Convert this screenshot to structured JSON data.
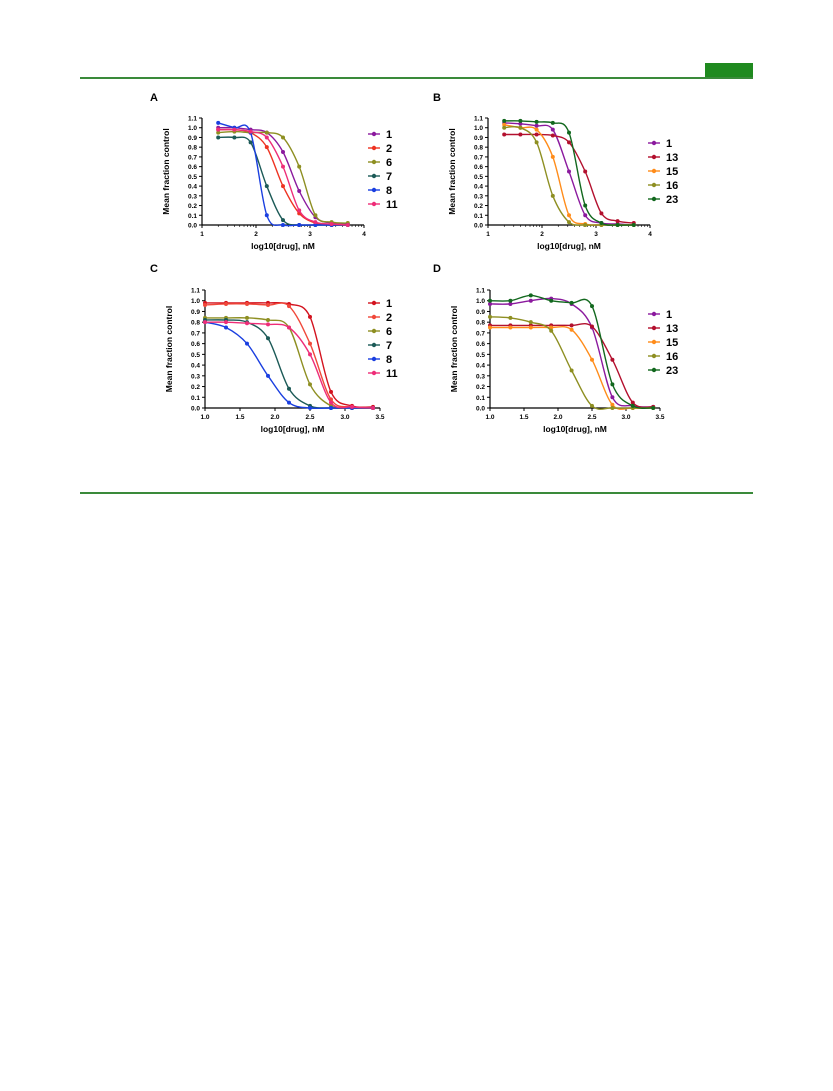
{
  "chart_data": [
    {
      "panel": "A",
      "type": "line",
      "xlabel": "log10[drug], nM",
      "ylabel": "Mean fraction control",
      "xlim": [
        1,
        4
      ],
      "ylim": [
        0,
        1.1
      ],
      "xticks": [
        "1",
        "2",
        "3",
        "4"
      ],
      "yticks": [
        "0.0",
        "0.1",
        "0.2",
        "0.3",
        "0.4",
        "0.5",
        "0.6",
        "0.7",
        "0.8",
        "0.9",
        "1.0",
        "1.1"
      ],
      "legend_position": "right",
      "series": [
        {
          "name": "1",
          "color": "#8b1a9e",
          "x": [
            1.3,
            1.6,
            1.9,
            2.2,
            2.5,
            2.8,
            3.1,
            3.4,
            3.7
          ],
          "y": [
            1.0,
            1.0,
            0.98,
            0.95,
            0.75,
            0.35,
            0.08,
            0.02,
            0.01
          ]
        },
        {
          "name": "2",
          "color": "#ee3322",
          "x": [
            1.3,
            1.6,
            1.9,
            2.2,
            2.5,
            2.8,
            3.1,
            3.4,
            3.7
          ],
          "y": [
            0.98,
            0.98,
            0.95,
            0.8,
            0.4,
            0.12,
            0.02,
            0.0,
            0.0
          ]
        },
        {
          "name": "6",
          "color": "#8e8f22",
          "x": [
            1.3,
            1.6,
            1.9,
            2.2,
            2.5,
            2.8,
            3.1,
            3.4,
            3.7
          ],
          "y": [
            0.95,
            0.96,
            0.95,
            0.95,
            0.9,
            0.6,
            0.1,
            0.03,
            0.02
          ]
        },
        {
          "name": "7",
          "color": "#1c5a57",
          "x": [
            1.3,
            1.6,
            1.9,
            2.2,
            2.5,
            2.8,
            3.1,
            3.4,
            3.7
          ],
          "y": [
            0.9,
            0.9,
            0.85,
            0.4,
            0.05,
            0.0,
            0.0,
            0.0,
            0.0
          ]
        },
        {
          "name": "8",
          "color": "#1a3fe0",
          "x": [
            1.3,
            1.6,
            1.9,
            2.2,
            2.5,
            2.8,
            3.1,
            3.4,
            3.7
          ],
          "y": [
            1.05,
            1.0,
            0.95,
            0.1,
            0.0,
            0.0,
            0.0,
            0.0,
            0.0
          ]
        },
        {
          "name": "11",
          "color": "#ee2d78",
          "x": [
            1.3,
            1.6,
            1.9,
            2.2,
            2.5,
            2.8,
            3.1,
            3.4,
            3.7
          ],
          "y": [
            0.98,
            0.98,
            0.96,
            0.9,
            0.6,
            0.15,
            0.03,
            0.01,
            0.0
          ]
        }
      ]
    },
    {
      "panel": "B",
      "type": "line",
      "xlabel": "log10[drug], nM",
      "ylabel": "Mean fraction control",
      "xlim": [
        1,
        4
      ],
      "ylim": [
        0,
        1.1
      ],
      "xticks": [
        "1",
        "2",
        "3",
        "4"
      ],
      "yticks": [
        "0.0",
        "0.1",
        "0.2",
        "0.3",
        "0.4",
        "0.5",
        "0.6",
        "0.7",
        "0.8",
        "0.9",
        "1.0",
        "1.1"
      ],
      "legend_position": "right",
      "series": [
        {
          "name": "1",
          "color": "#8b1a9e",
          "x": [
            1.3,
            1.6,
            1.9,
            2.2,
            2.5,
            2.8,
            3.1,
            3.4,
            3.7
          ],
          "y": [
            1.05,
            1.04,
            1.02,
            0.98,
            0.55,
            0.1,
            0.02,
            0.01,
            0.0
          ]
        },
        {
          "name": "13",
          "color": "#b3102e",
          "x": [
            1.3,
            1.6,
            1.9,
            2.2,
            2.5,
            2.8,
            3.1,
            3.4,
            3.7
          ],
          "y": [
            0.93,
            0.93,
            0.93,
            0.92,
            0.85,
            0.55,
            0.12,
            0.04,
            0.02
          ]
        },
        {
          "name": "15",
          "color": "#ff8c1a",
          "x": [
            1.3,
            1.6,
            1.9,
            2.2,
            2.5,
            2.8,
            3.1,
            3.4,
            3.7
          ],
          "y": [
            1.03,
            1.0,
            0.98,
            0.7,
            0.1,
            0.01,
            0.0,
            0.0,
            0.0
          ]
        },
        {
          "name": "16",
          "color": "#8e8f22",
          "x": [
            1.3,
            1.6,
            1.9,
            2.2,
            2.5,
            2.8,
            3.1,
            3.4,
            3.7
          ],
          "y": [
            1.0,
            1.0,
            0.85,
            0.3,
            0.03,
            0.0,
            0.0,
            0.0,
            0.0
          ]
        },
        {
          "name": "23",
          "color": "#12681e",
          "x": [
            1.3,
            1.6,
            1.9,
            2.2,
            2.5,
            2.8,
            3.1,
            3.4,
            3.7
          ],
          "y": [
            1.07,
            1.07,
            1.06,
            1.05,
            0.95,
            0.2,
            0.02,
            0.0,
            0.0
          ]
        }
      ]
    },
    {
      "panel": "C",
      "type": "line",
      "xlabel": "log10[drug], nM",
      "ylabel": "Mean fraction control",
      "xlim": [
        1.0,
        3.5
      ],
      "ylim": [
        0,
        1.1
      ],
      "xticks": [
        "1.0",
        "1.5",
        "2.0",
        "2.5",
        "3.0",
        "3.5"
      ],
      "yticks": [
        "0.0",
        "0.1",
        "0.2",
        "0.3",
        "0.4",
        "0.5",
        "0.6",
        "0.7",
        "0.8",
        "0.9",
        "1.0",
        "1.1"
      ],
      "legend_position": "right",
      "series": [
        {
          "name": "1",
          "color": "#d3131f",
          "x": [
            1.0,
            1.3,
            1.6,
            1.9,
            2.2,
            2.5,
            2.8,
            3.1,
            3.4
          ],
          "y": [
            0.98,
            0.98,
            0.98,
            0.98,
            0.97,
            0.85,
            0.15,
            0.02,
            0.01
          ]
        },
        {
          "name": "2",
          "color": "#f0483a",
          "x": [
            1.0,
            1.3,
            1.6,
            1.9,
            2.2,
            2.5,
            2.8,
            3.1,
            3.4
          ],
          "y": [
            0.96,
            0.97,
            0.97,
            0.96,
            0.95,
            0.6,
            0.08,
            0.01,
            0.0
          ]
        },
        {
          "name": "6",
          "color": "#8e8f22",
          "x": [
            1.0,
            1.3,
            1.6,
            1.9,
            2.2,
            2.5,
            2.8,
            3.1,
            3.4
          ],
          "y": [
            0.84,
            0.84,
            0.84,
            0.82,
            0.75,
            0.22,
            0.02,
            0.0,
            0.0
          ]
        },
        {
          "name": "7",
          "color": "#1c5a57",
          "x": [
            1.0,
            1.3,
            1.6,
            1.9,
            2.2,
            2.5,
            2.8,
            3.1,
            3.4
          ],
          "y": [
            0.82,
            0.82,
            0.8,
            0.65,
            0.18,
            0.02,
            0.0,
            0.0,
            0.0
          ]
        },
        {
          "name": "8",
          "color": "#1a3fe0",
          "x": [
            1.0,
            1.3,
            1.6,
            1.9,
            2.2,
            2.5,
            2.8,
            3.1,
            3.4
          ],
          "y": [
            0.8,
            0.75,
            0.6,
            0.3,
            0.05,
            0.0,
            0.0,
            0.0,
            0.0
          ]
        },
        {
          "name": "11",
          "color": "#ee2d78",
          "x": [
            1.0,
            1.3,
            1.6,
            1.9,
            2.2,
            2.5,
            2.8,
            3.1,
            3.4
          ],
          "y": [
            0.8,
            0.8,
            0.79,
            0.78,
            0.75,
            0.5,
            0.05,
            0.01,
            0.0
          ]
        }
      ]
    },
    {
      "panel": "D",
      "type": "line",
      "xlabel": "log10[drug], nM",
      "ylabel": "Mean fraction control",
      "xlim": [
        1.0,
        3.5
      ],
      "ylim": [
        0,
        1.1
      ],
      "xticks": [
        "1.0",
        "1.5",
        "2.0",
        "2.5",
        "3.0",
        "3.5"
      ],
      "yticks": [
        "0.0",
        "0.1",
        "0.2",
        "0.3",
        "0.4",
        "0.5",
        "0.6",
        "0.7",
        "0.8",
        "0.9",
        "1.0",
        "1.1"
      ],
      "legend_position": "right",
      "series": [
        {
          "name": "1",
          "color": "#8b1a9e",
          "x": [
            1.0,
            1.3,
            1.6,
            1.9,
            2.2,
            2.5,
            2.8,
            3.1,
            3.4
          ],
          "y": [
            0.97,
            0.97,
            1.0,
            1.02,
            0.97,
            0.75,
            0.1,
            0.02,
            0.01
          ]
        },
        {
          "name": "13",
          "color": "#b3102e",
          "x": [
            1.0,
            1.3,
            1.6,
            1.9,
            2.2,
            2.5,
            2.8,
            3.1,
            3.4
          ],
          "y": [
            0.77,
            0.77,
            0.77,
            0.77,
            0.77,
            0.76,
            0.45,
            0.05,
            0.01
          ]
        },
        {
          "name": "15",
          "color": "#ff8c1a",
          "x": [
            1.0,
            1.3,
            1.6,
            1.9,
            2.2,
            2.5,
            2.8,
            3.1,
            3.4
          ],
          "y": [
            0.75,
            0.75,
            0.75,
            0.75,
            0.73,
            0.45,
            0.03,
            0.0,
            0.0
          ]
        },
        {
          "name": "16",
          "color": "#8e8f22",
          "x": [
            1.0,
            1.3,
            1.6,
            1.9,
            2.2,
            2.5,
            2.8,
            3.1,
            3.4
          ],
          "y": [
            0.85,
            0.84,
            0.8,
            0.72,
            0.35,
            0.02,
            0.0,
            0.0,
            0.0
          ]
        },
        {
          "name": "23",
          "color": "#12681e",
          "x": [
            1.0,
            1.3,
            1.6,
            1.9,
            2.2,
            2.5,
            2.8,
            3.1,
            3.4
          ],
          "y": [
            1.0,
            1.0,
            1.05,
            1.0,
            0.98,
            0.95,
            0.22,
            0.02,
            0.0
          ]
        }
      ]
    }
  ]
}
